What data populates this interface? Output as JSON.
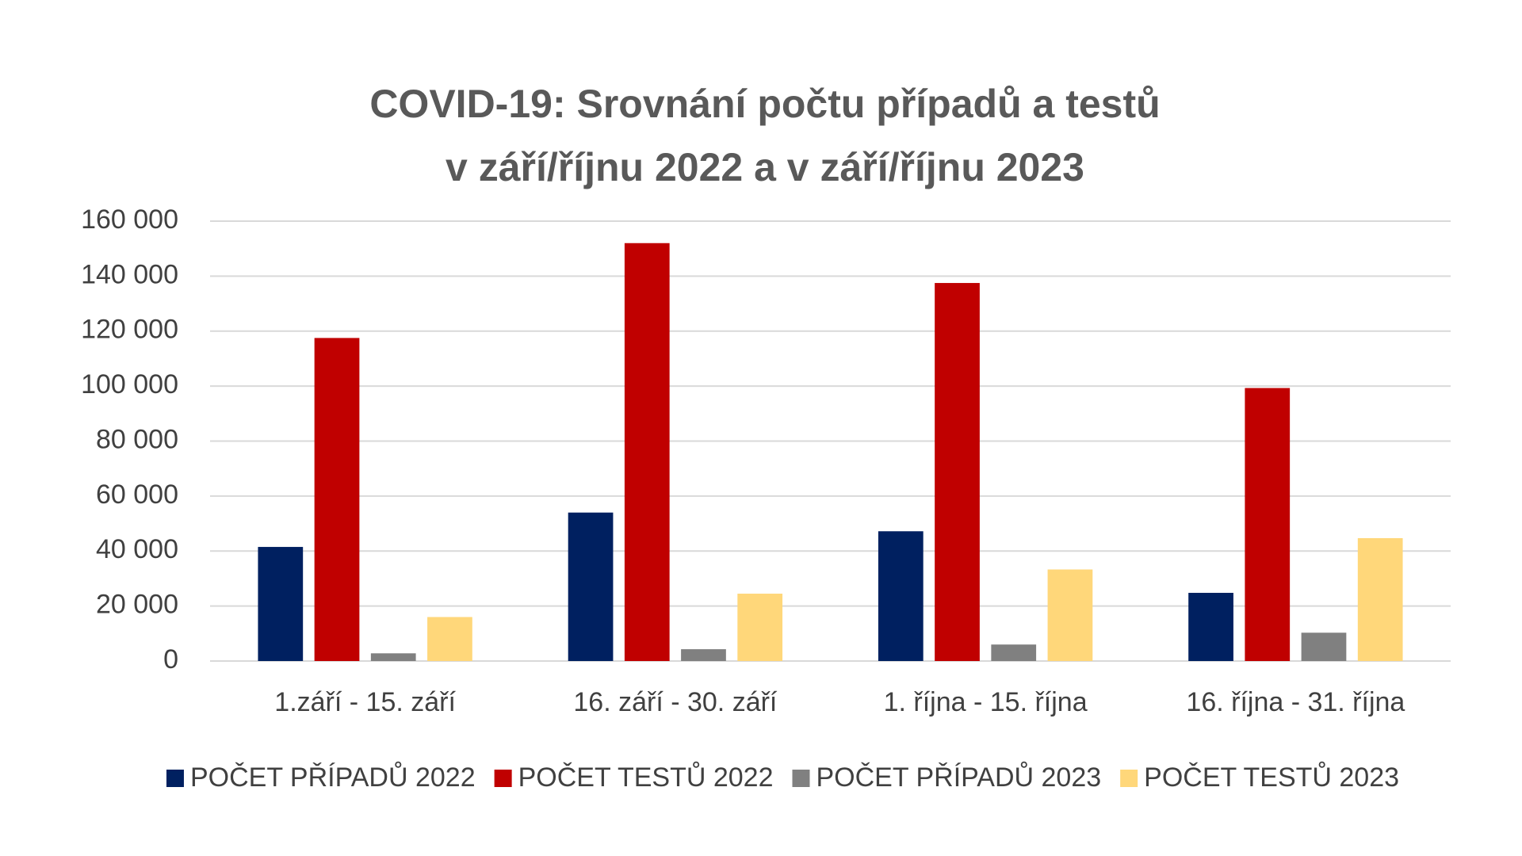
{
  "chart_data": {
    "type": "bar",
    "title": [
      "COVID-19: Srovnání počtu případů a testů",
      "v září/říjnu 2022 a v září/říjnu 2023"
    ],
    "categories": [
      "1.září - 15. září",
      "16. září - 30. září",
      "1. října - 15. října",
      "16. října - 31. října"
    ],
    "series": [
      {
        "name": "POČET PŘÍPADŮ 2022",
        "color": "#002060",
        "values": [
          41500,
          54000,
          47200,
          24800
        ]
      },
      {
        "name": "POČET TESTŮ 2022",
        "color": "#c00000",
        "values": [
          117500,
          152000,
          137500,
          99300
        ]
      },
      {
        "name": "POČET PŘÍPADŮ 2023",
        "color": "#808080",
        "values": [
          2800,
          4300,
          6000,
          10300
        ]
      },
      {
        "name": "POČET TESTŮ 2023",
        "color": "#ffd77a",
        "values": [
          16000,
          24500,
          33300,
          44700
        ]
      }
    ],
    "ylim": [
      0,
      160000
    ],
    "yticks": [
      0,
      {
        "value": 20000,
        "label": "20 000"
      },
      {
        "value": 40000,
        "label": "40 000"
      },
      {
        "value": 60000,
        "label": "60 000"
      },
      {
        "value": 80000,
        "label": "80 000"
      },
      {
        "value": 100000,
        "label": "100 000"
      },
      {
        "value": 120000,
        "label": "120 000"
      },
      {
        "value": 140000,
        "label": "140 000"
      },
      {
        "value": 160000,
        "label": "160 000"
      }
    ],
    "grid": true,
    "legend": "bottom"
  }
}
